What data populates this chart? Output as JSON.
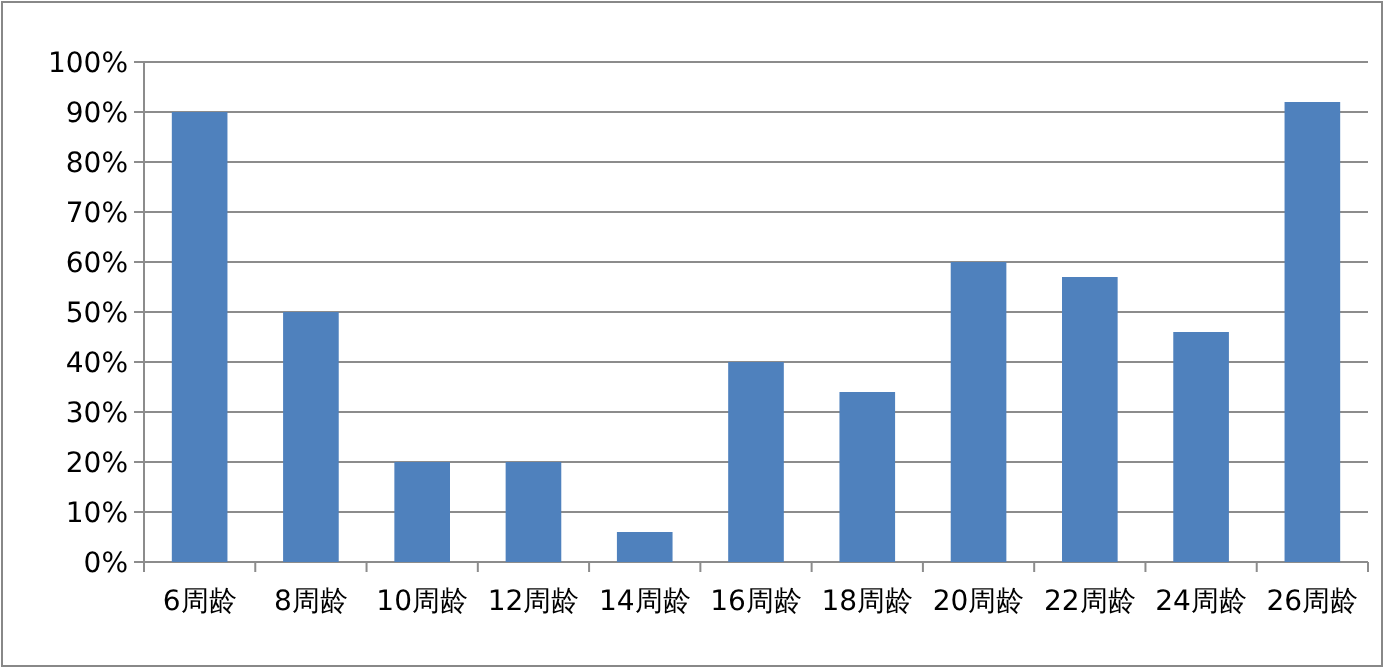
{
  "chart_data": {
    "type": "bar",
    "categories": [
      "6周龄",
      "8周龄",
      "10周龄",
      "12周龄",
      "14周龄",
      "16周龄",
      "18周龄",
      "20周龄",
      "22周龄",
      "24周龄",
      "26周龄"
    ],
    "values": [
      90,
      50,
      20,
      20,
      6,
      40,
      34,
      60,
      57,
      46,
      92
    ],
    "color": "#4f81bd",
    "ylim": [
      0,
      100
    ],
    "yticks": [
      {
        "value": 0,
        "label": "0%"
      },
      {
        "value": 10,
        "label": "10%"
      },
      {
        "value": 20,
        "label": "20%"
      },
      {
        "value": 30,
        "label": "30%"
      },
      {
        "value": 40,
        "label": "40%"
      },
      {
        "value": 50,
        "label": "50%"
      },
      {
        "value": 60,
        "label": "60%"
      },
      {
        "value": 70,
        "label": "70%"
      },
      {
        "value": 80,
        "label": "80%"
      },
      {
        "value": 90,
        "label": "90%"
      },
      {
        "value": 100,
        "label": "100%"
      }
    ],
    "grid": "y"
  }
}
